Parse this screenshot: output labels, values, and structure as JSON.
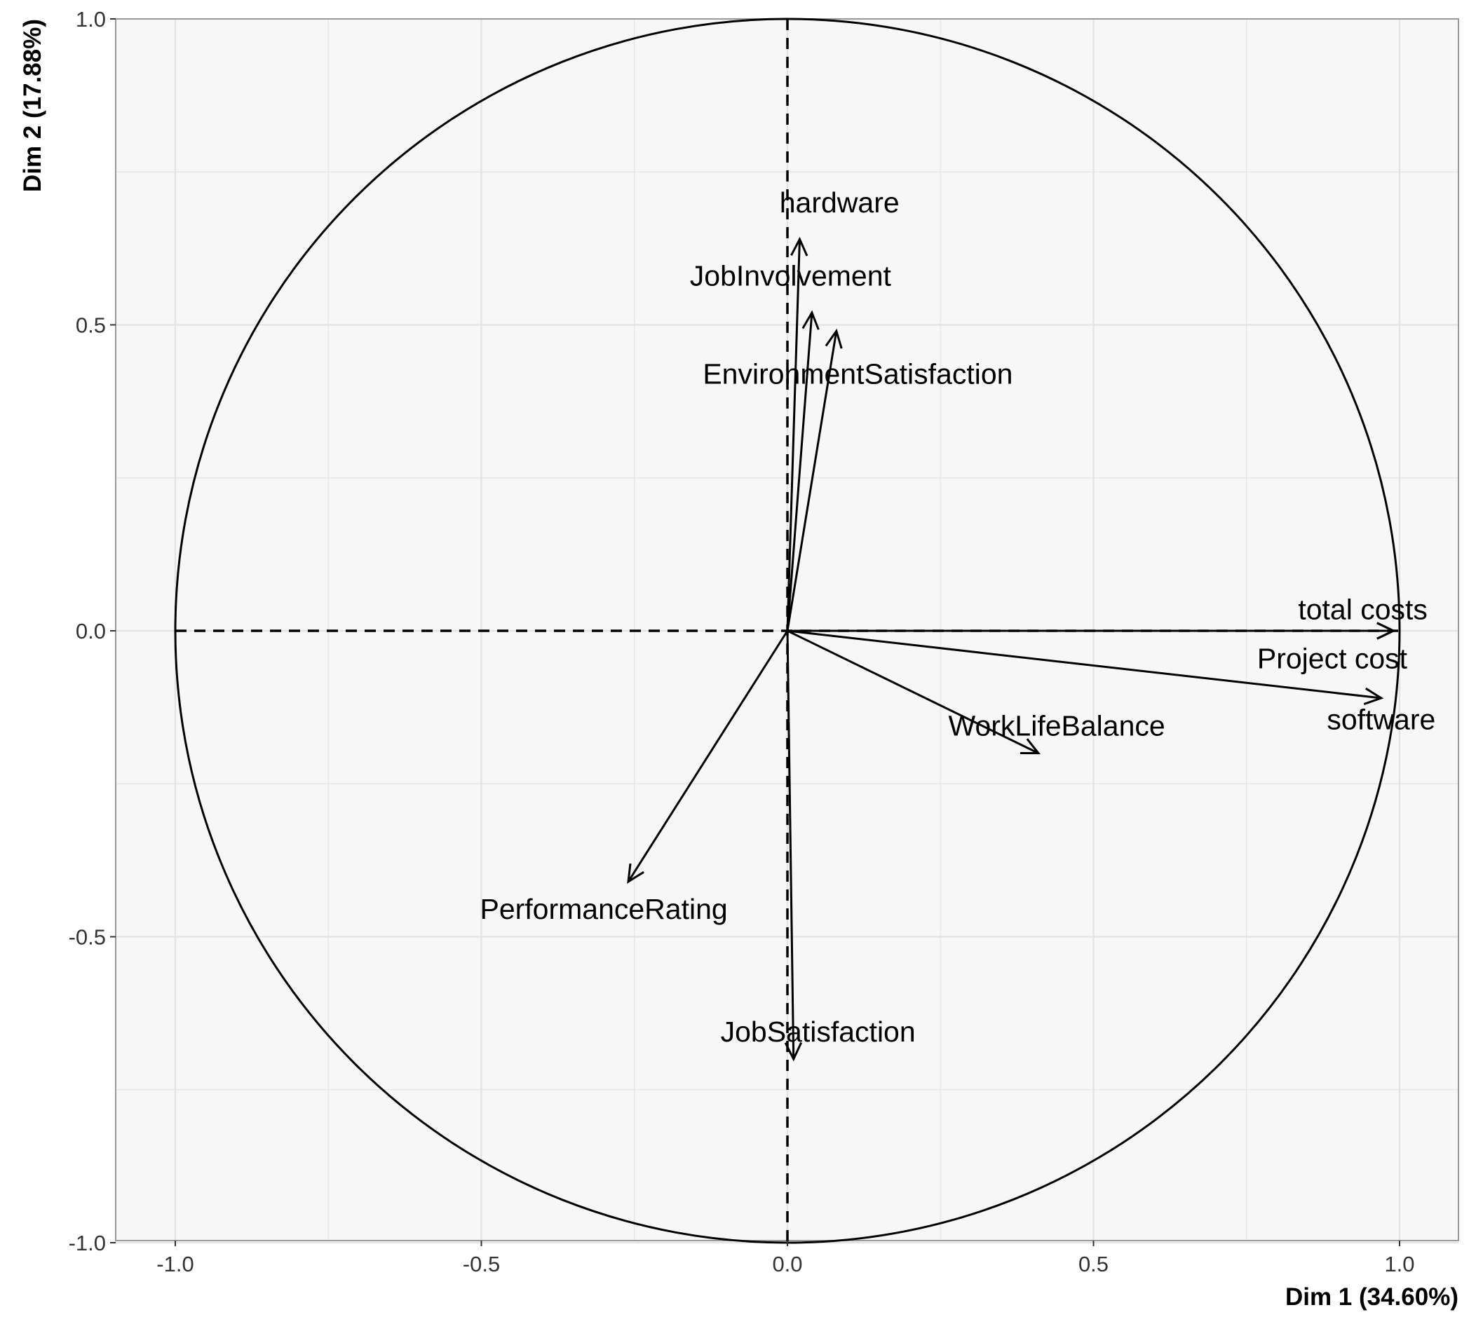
{
  "chart_data": {
    "type": "scatter",
    "subtype": "pca-variable-correlation-circle",
    "title": "",
    "xlabel": "Dim 1 (34.60%)",
    "ylabel": "Dim 2 (17.88%)",
    "xlim": [
      -1.1,
      1.1
    ],
    "ylim": [
      -1.1,
      1.1
    ],
    "xticks": [
      -1.0,
      -0.5,
      0.0,
      0.5,
      1.0
    ],
    "yticks": [
      -1.0,
      -0.5,
      0.0,
      0.5,
      1.0
    ],
    "xtick_labels": [
      "-1.0",
      "-0.5",
      "0.0",
      "0.5",
      "1.0"
    ],
    "ytick_labels": [
      "-1.0",
      "-0.5",
      "0.0",
      "0.5",
      "1.0"
    ],
    "grid": true,
    "unit_circle": true,
    "reference_lines": "dashed at x=0 and y=0",
    "variables": [
      {
        "name": "hardware",
        "x": 0.02,
        "y": 0.64
      },
      {
        "name": "JobInvolvement",
        "x": 0.04,
        "y": 0.52
      },
      {
        "name": "EnvironmentSatisfaction",
        "x": 0.08,
        "y": 0.49
      },
      {
        "name": "total costs",
        "x": 0.99,
        "y": 0.0
      },
      {
        "name": "Project cost",
        "x": 0.99,
        "y": 0.0
      },
      {
        "name": "software",
        "x": 0.97,
        "y": -0.11
      },
      {
        "name": "WorkLifeBalance",
        "x": 0.41,
        "y": -0.2
      },
      {
        "name": "PerformanceRating",
        "x": -0.26,
        "y": -0.41
      },
      {
        "name": "JobSatisfaction",
        "x": 0.01,
        "y": -0.7
      }
    ],
    "label_offsets_data_units": [
      {
        "name": "hardware",
        "dx": 0.065,
        "dy": 0.06
      },
      {
        "name": "JobInvolvement",
        "dx": -0.035,
        "dy": 0.06
      },
      {
        "name": "EnvironmentSatisfaction",
        "dx": 0.035,
        "dy": -0.07
      },
      {
        "name": "total costs",
        "dx": -0.05,
        "dy": 0.035
      },
      {
        "name": "Project cost",
        "dx": -0.1,
        "dy": -0.045
      },
      {
        "name": "software",
        "dx": 0.0,
        "dy": -0.035
      },
      {
        "name": "WorkLifeBalance",
        "dx": 0.03,
        "dy": 0.045
      },
      {
        "name": "PerformanceRating",
        "dx": -0.04,
        "dy": -0.045
      },
      {
        "name": "JobSatisfaction",
        "dx": 0.04,
        "dy": 0.045
      }
    ],
    "colors": {
      "panel_background": "#f7f7f7",
      "grid": "#e3e3e3",
      "panel_border": "#999999",
      "ink": "#000000"
    }
  }
}
